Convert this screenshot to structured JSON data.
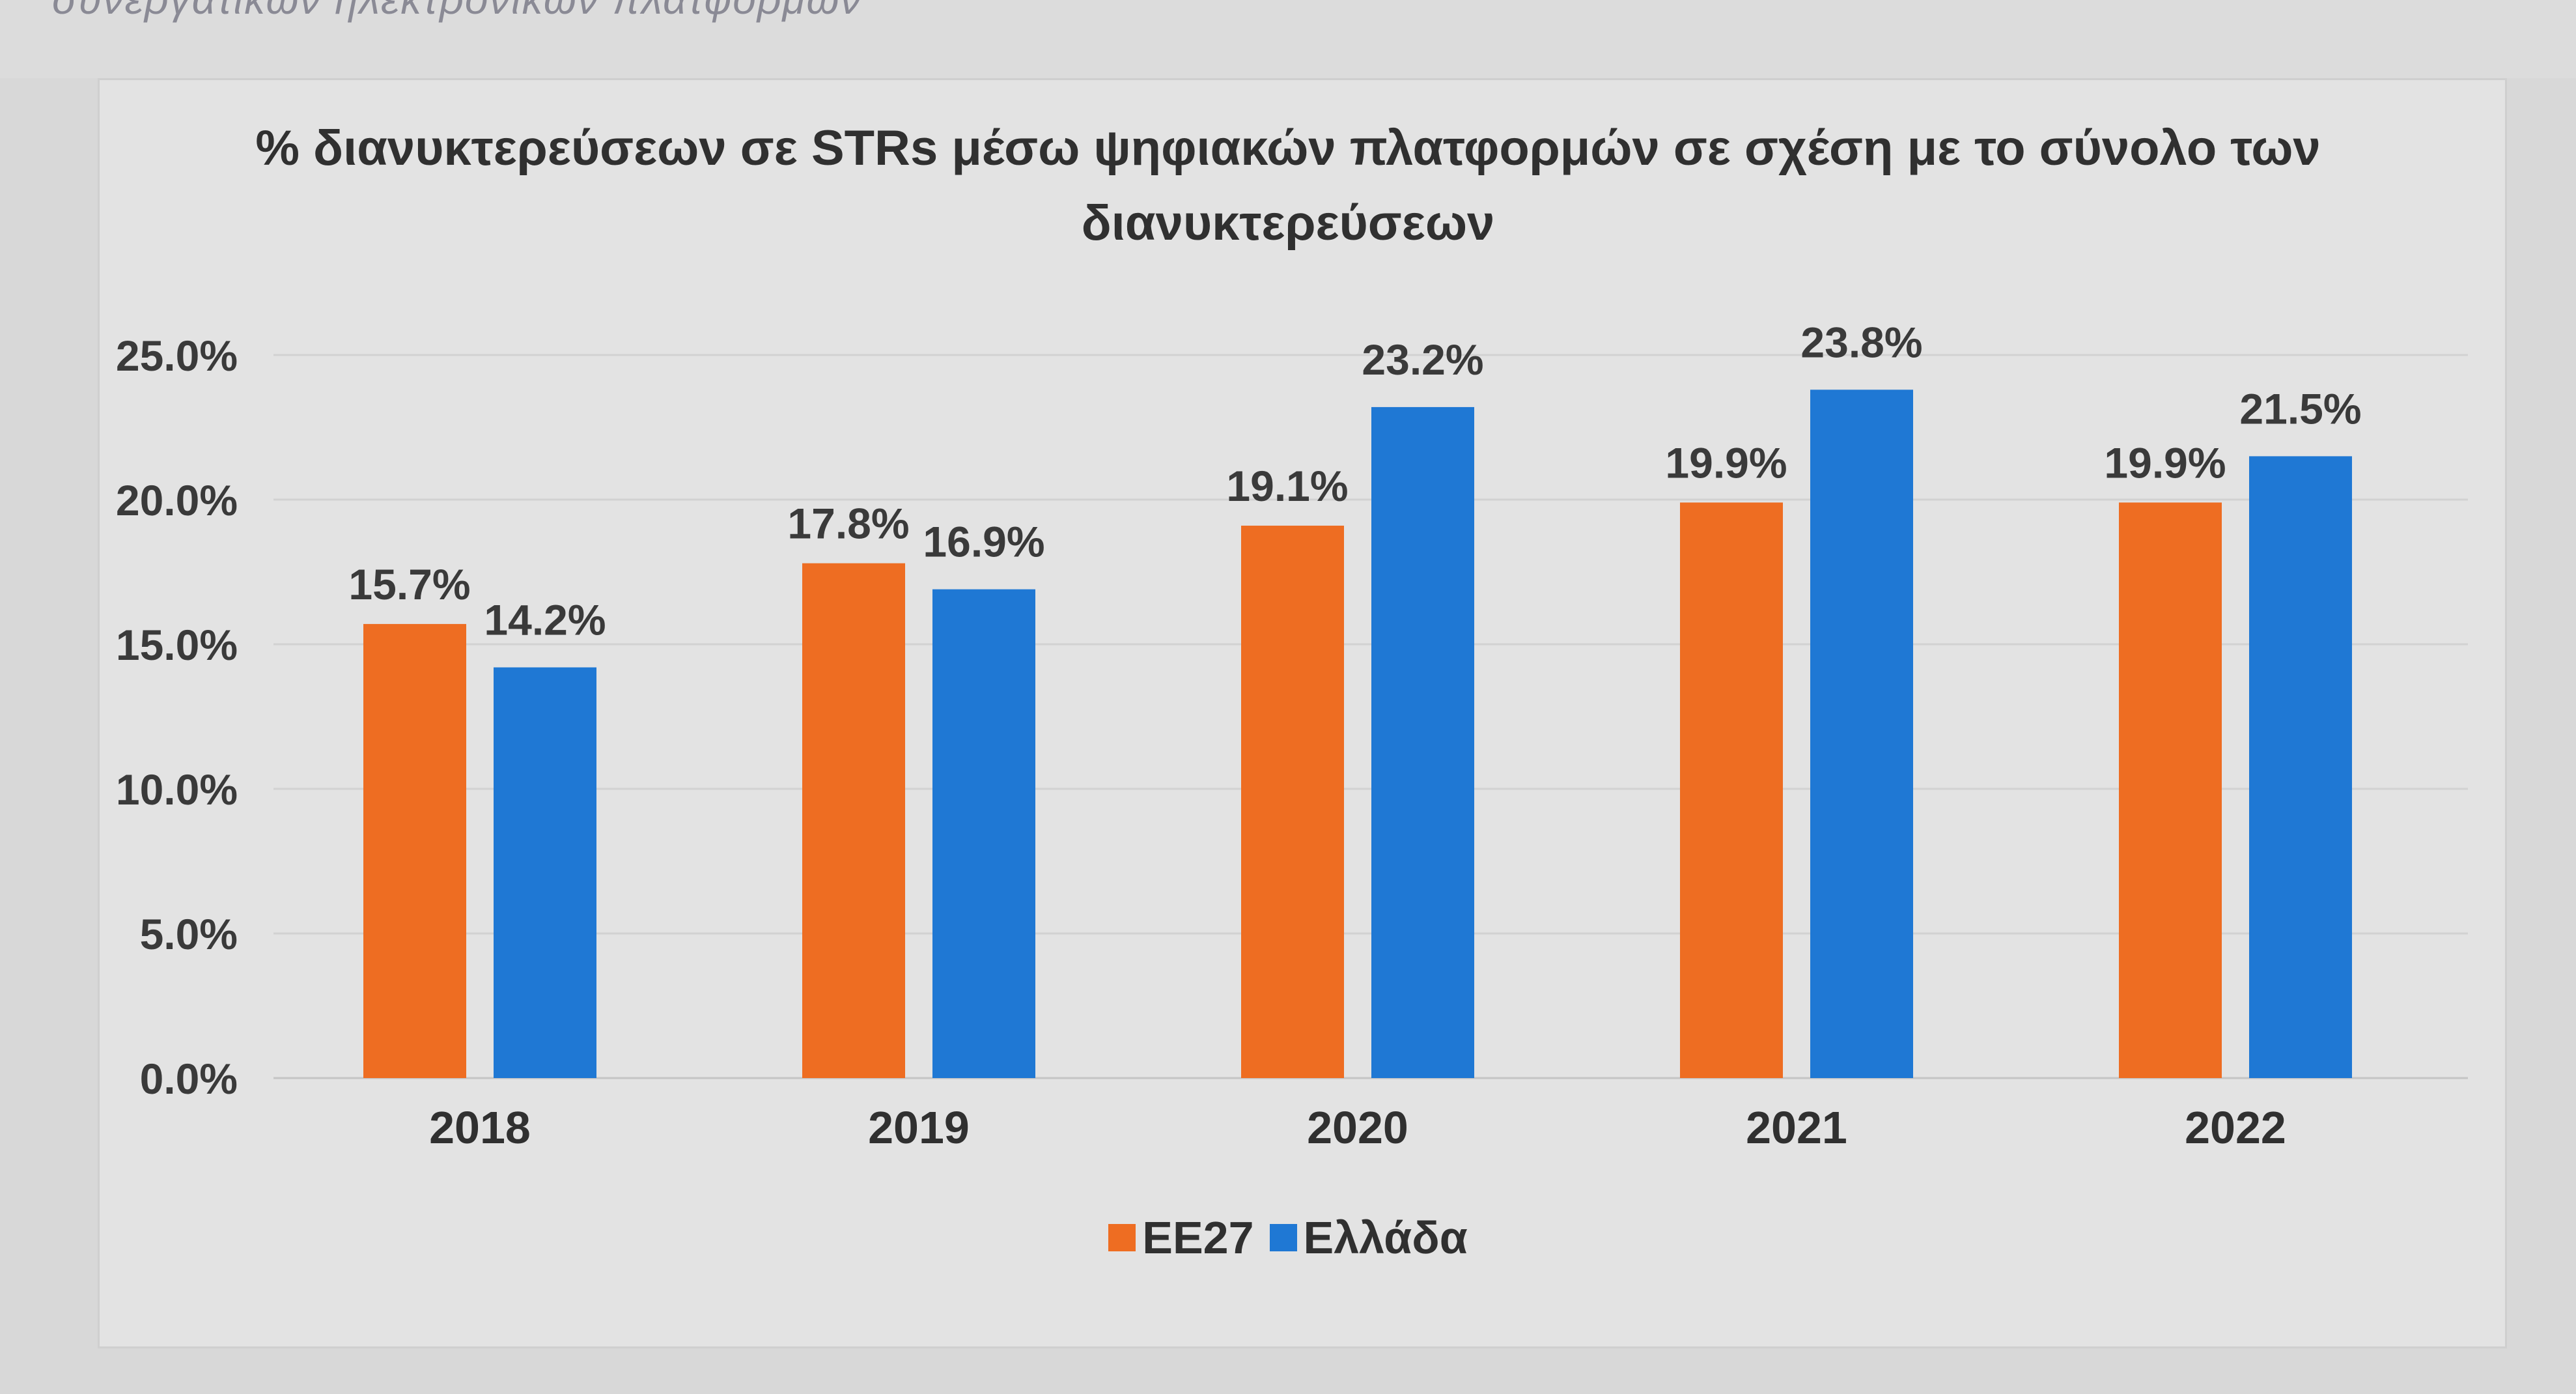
{
  "header": {
    "cropped_text": "συνεργατικών ηλεκτρονικών πλατφορμών"
  },
  "chart_data": {
    "type": "bar",
    "title_line1": "% διανυκτερεύσεων σε STRs μέσω ψηφιακών πλατφορμών σε σχέση με το σύνολο των",
    "title_line2": "διανυκτερεύσεων",
    "categories": [
      "2018",
      "2019",
      "2020",
      "2021",
      "2022"
    ],
    "series": [
      {
        "name": "ΕΕ27",
        "values": [
          15.7,
          17.8,
          19.1,
          19.9,
          19.9
        ],
        "color": "#ee6d22"
      },
      {
        "name": "Ελλάδα",
        "values": [
          14.2,
          16.9,
          23.2,
          23.8,
          21.5
        ],
        "color": "#1f78d4"
      }
    ],
    "value_labels": [
      [
        "15.7%",
        "17.8%",
        "19.1%",
        "19.9%",
        "19.9%"
      ],
      [
        "14.2%",
        "16.9%",
        "23.2%",
        "23.8%",
        "21.5%"
      ]
    ],
    "ylim": [
      0,
      25
    ],
    "yticks": [
      "0.0%",
      "5.0%",
      "10.0%",
      "15.0%",
      "20.0%",
      "25.0%"
    ],
    "grid": true,
    "legend_position": "bottom"
  }
}
